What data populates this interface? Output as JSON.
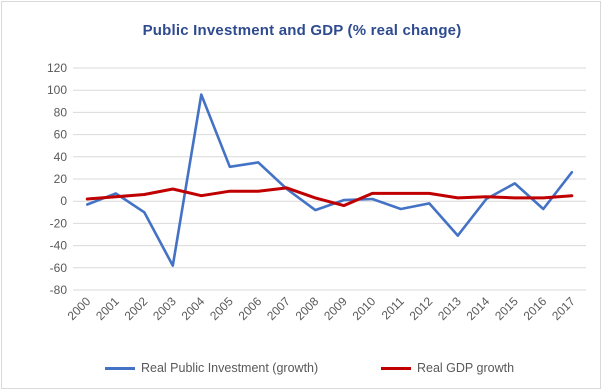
{
  "chart_data": {
    "type": "line",
    "title": "Public Investment and GDP (% real change)",
    "xlabel": "",
    "ylabel": "",
    "x": [
      "2000",
      "2001",
      "2002",
      "2003",
      "2004",
      "2005",
      "2006",
      "2007",
      "2008",
      "2009",
      "2010",
      "2011",
      "2012",
      "2013",
      "2014",
      "2015",
      "2016",
      "2017"
    ],
    "ylim": [
      -80,
      120
    ],
    "yticks": [
      -80,
      -60,
      -40,
      -20,
      0,
      20,
      40,
      60,
      80,
      100,
      120
    ],
    "grid": true,
    "legend_position": "bottom",
    "series": [
      {
        "name": "Real Public Investment (growth)",
        "color": "#4472c4",
        "values": [
          -3,
          7,
          -10,
          -58,
          96,
          31,
          35,
          11,
          -8,
          1,
          2,
          -7,
          -2,
          -31,
          2,
          16,
          -7,
          26
        ]
      },
      {
        "name": "Real GDP growth",
        "color": "#c00000",
        "values": [
          2,
          4,
          6,
          11,
          5,
          9,
          9,
          12,
          3,
          -4,
          7,
          7,
          7,
          3,
          4,
          3,
          3,
          5
        ]
      }
    ]
  }
}
